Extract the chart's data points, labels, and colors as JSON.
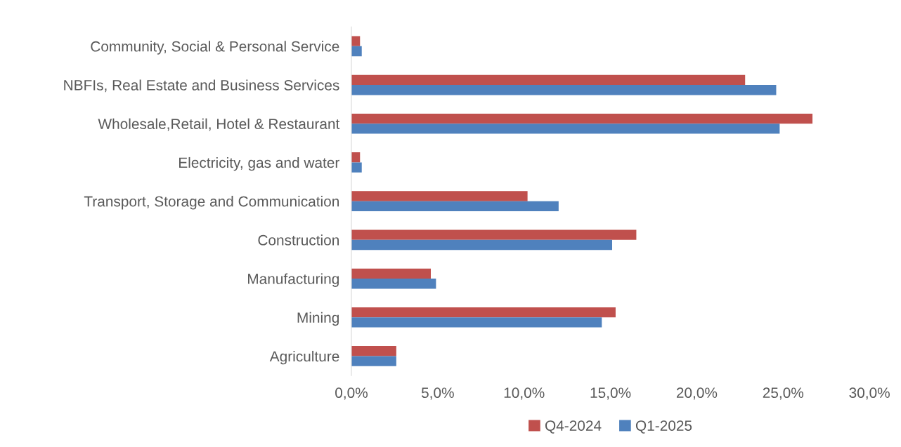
{
  "chart_data": {
    "type": "bar",
    "orientation": "horizontal",
    "categories": [
      "Community, Social & Personal Service",
      "NBFIs, Real Estate and Business Services",
      "Wholesale,Retail, Hotel & Restaurant",
      "Electricity, gas and water",
      "Transport, Storage and Communication",
      "Construction",
      "Manufacturing",
      "Mining",
      "Agriculture"
    ],
    "series": [
      {
        "name": "Q4-2024",
        "color": "#c0504d",
        "values": [
          0.5,
          22.8,
          26.7,
          0.5,
          10.2,
          16.5,
          4.6,
          15.3,
          2.6
        ]
      },
      {
        "name": "Q1-2025",
        "color": "#4f81bd",
        "values": [
          0.6,
          24.6,
          24.8,
          0.6,
          12.0,
          15.1,
          4.9,
          14.5,
          2.6
        ]
      }
    ],
    "xlim": [
      0,
      30
    ],
    "xticks": [
      {
        "value": 0,
        "label": "0,0%"
      },
      {
        "value": 5,
        "label": "5,0%"
      },
      {
        "value": 10,
        "label": "10,0%"
      },
      {
        "value": 15,
        "label": "15,0%"
      },
      {
        "value": 20,
        "label": "20,0%"
      },
      {
        "value": 25,
        "label": "25,0%"
      },
      {
        "value": 30,
        "label": "30,0%"
      }
    ],
    "grid": false,
    "legend": "bottom"
  }
}
